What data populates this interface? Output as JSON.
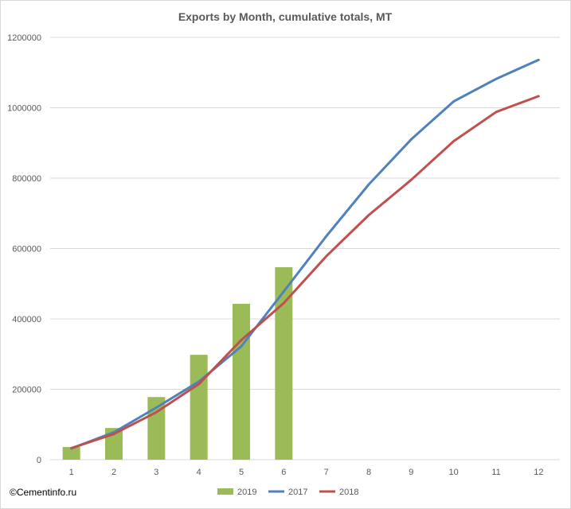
{
  "chart_data": {
    "type": "bar+line",
    "title": "Exports by Month, cumulative totals, MT",
    "xlabel": "",
    "ylabel": "",
    "categories": [
      "1",
      "2",
      "3",
      "4",
      "5",
      "6",
      "7",
      "8",
      "9",
      "10",
      "11",
      "12"
    ],
    "y_ticks": [
      "0",
      "200000",
      "400000",
      "600000",
      "800000",
      "1000000",
      "1200000"
    ],
    "ylim": [
      0,
      1200000
    ],
    "grid": true,
    "legend_position": "bottom",
    "series": [
      {
        "name": "2019",
        "type": "bar",
        "color": "#9bbb59",
        "values": [
          36000,
          90000,
          178000,
          298000,
          443000,
          547000,
          null,
          null,
          null,
          null,
          null,
          null
        ]
      },
      {
        "name": "2017",
        "type": "line",
        "color": "#4f81bd",
        "values": [
          32000,
          78000,
          148000,
          222000,
          322000,
          478000,
          635000,
          782000,
          910000,
          1018000,
          1082000,
          1136000
        ]
      },
      {
        "name": "2018",
        "type": "line",
        "color": "#c0504d",
        "values": [
          33000,
          73000,
          135000,
          215000,
          340000,
          445000,
          578000,
          695000,
          795000,
          905000,
          988000,
          1033000
        ]
      }
    ]
  },
  "watermark": "©Cementinfo.ru"
}
